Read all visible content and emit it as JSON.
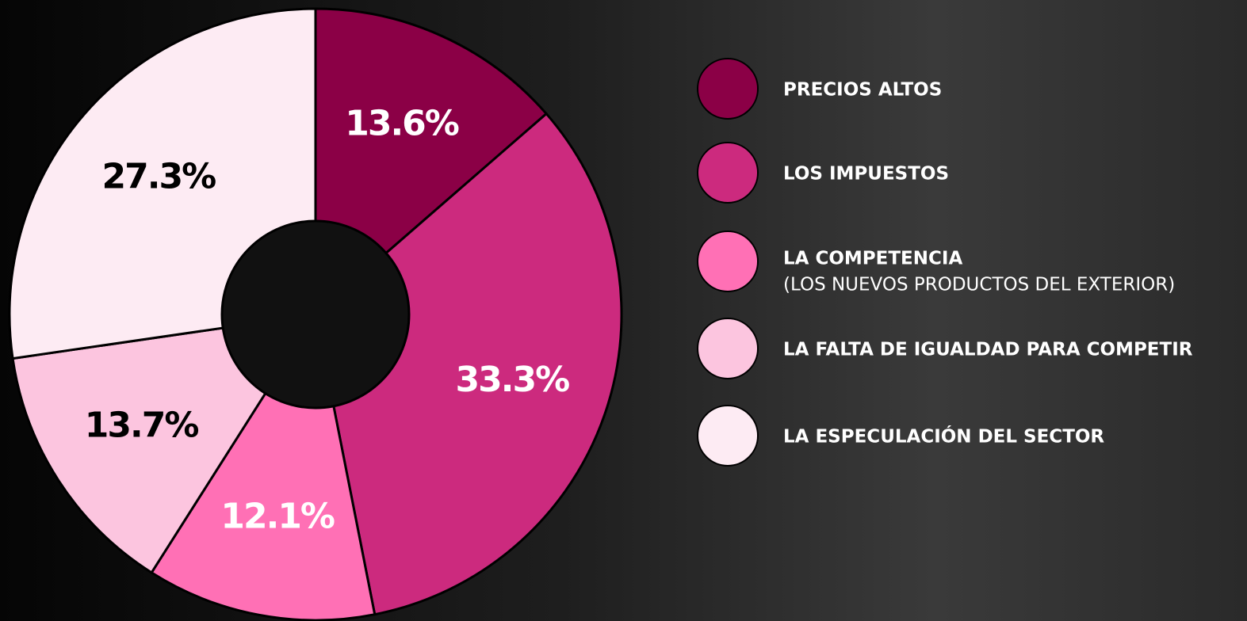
{
  "chart_data": {
    "type": "pie",
    "donut": true,
    "categories": [
      "PRECIOS ALTOS",
      "LOS IMPUESTOS",
      "LA COMPETENCIA",
      "LA FALTA DE IGUALDAD PARA COMPETIR",
      "LA ESPECULACIÓN DEL SECTOR"
    ],
    "values": [
      13.6,
      33.3,
      12.1,
      13.7,
      27.3
    ],
    "value_labels": [
      "13.6%",
      "33.3%",
      "12.1%",
      "13.7%",
      "27.3%"
    ],
    "colors": [
      "#8b0046",
      "#cc2a7e",
      "#ff70b5",
      "#fcc5df",
      "#fdebf3"
    ],
    "label_colors": [
      "#ffffff",
      "#ffffff",
      "#ffffff",
      "#000000",
      "#000000"
    ],
    "annotations": [
      {
        "category": "LA COMPETENCIA",
        "text": "(LOS NUEVOS PRODUCTOS DEL EXTERIOR)"
      }
    ],
    "legend": "right"
  }
}
